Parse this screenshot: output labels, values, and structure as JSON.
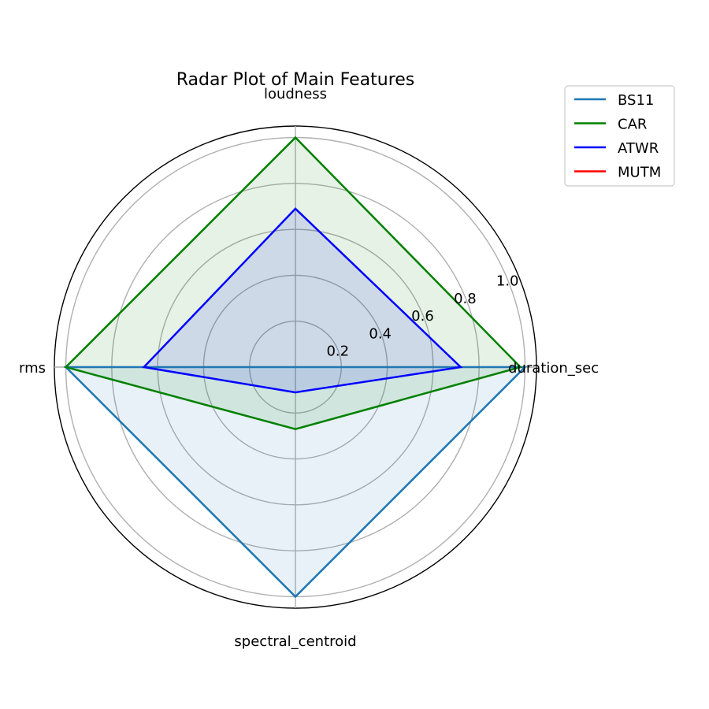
{
  "chart_data": {
    "type": "radar",
    "title": "Radar Plot of Main Features",
    "categories": [
      "duration_sec",
      "loudness",
      "rms",
      "spectral_centroid"
    ],
    "radial_ticks": [
      0.2,
      0.4,
      0.6,
      0.8,
      1.0
    ],
    "radial_tick_labels": [
      "0.2",
      "0.4",
      "0.6",
      "0.8",
      "1.0"
    ],
    "rlim": [
      0,
      1.05
    ],
    "grid": true,
    "legend_position": "top-right",
    "series": [
      {
        "name": "BS11",
        "color": "#1f77b4",
        "values": [
          1.0,
          0.0,
          1.0,
          1.0
        ]
      },
      {
        "name": "CAR",
        "color": "#008000",
        "values": [
          0.98,
          1.0,
          1.0,
          0.27
        ]
      },
      {
        "name": "ATWR",
        "color": "#0000ff",
        "values": [
          0.72,
          0.69,
          0.66,
          0.11
        ]
      },
      {
        "name": "MUTM",
        "color": "#ff0000",
        "values": [
          0.0,
          0.0,
          0.0,
          0.0
        ]
      }
    ]
  }
}
